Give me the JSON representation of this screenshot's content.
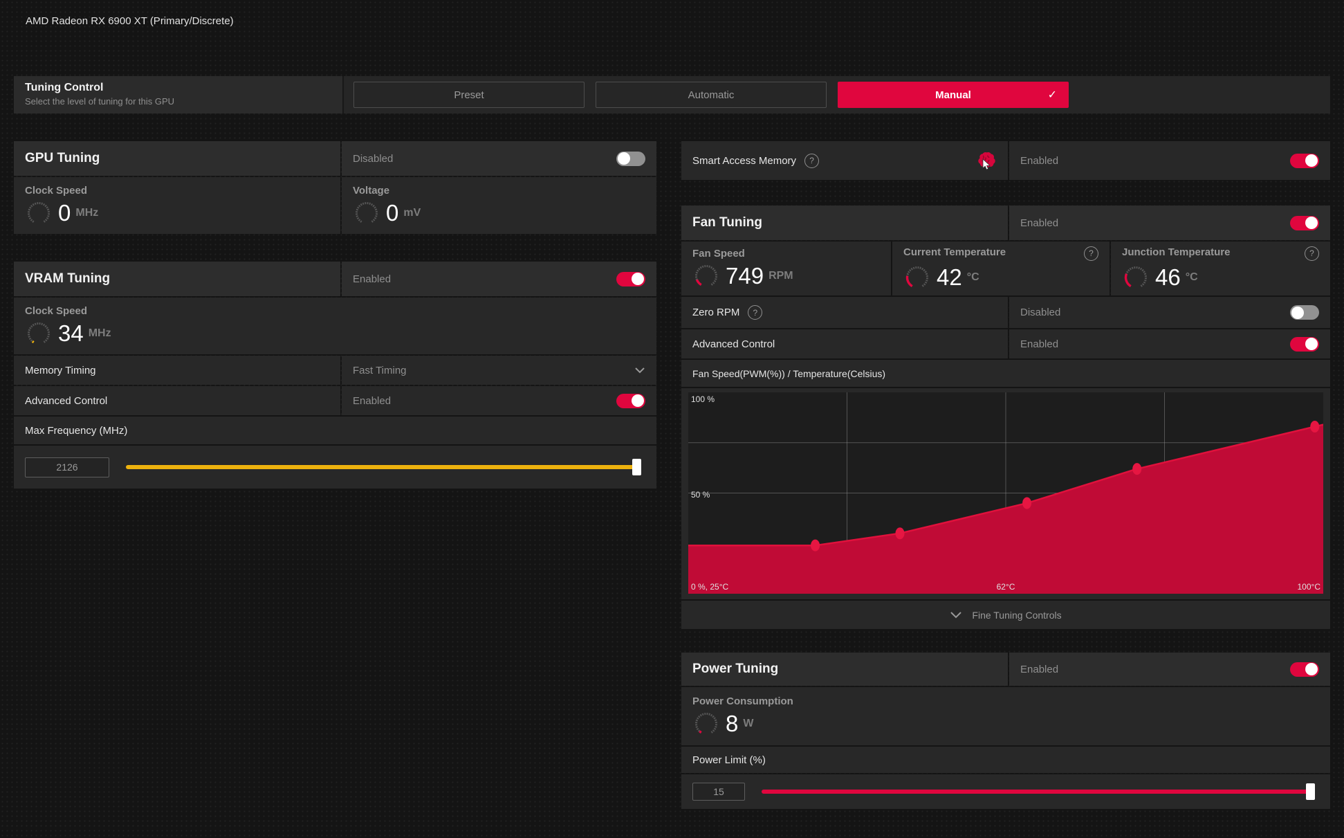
{
  "page": {
    "title": "AMD Radeon RX 6900 XT (Primary/Discrete)"
  },
  "tuning_control": {
    "title": "Tuning Control",
    "subtitle": "Select the level of tuning for this GPU",
    "preset": "Preset",
    "automatic": "Automatic",
    "manual": "Manual"
  },
  "gpu_tuning": {
    "title": "GPU Tuning",
    "state": "Disabled",
    "clock_label": "Clock Speed",
    "clock_value": "0",
    "clock_unit": "MHz",
    "clock_gauge": {
      "pct": 0,
      "color": "#e0063e"
    },
    "voltage_label": "Voltage",
    "voltage_value": "0",
    "voltage_unit": "mV",
    "voltage_gauge": {
      "pct": 0,
      "color": "#e0063e"
    }
  },
  "vram_tuning": {
    "title": "VRAM Tuning",
    "state": "Enabled",
    "clock_label": "Clock Speed",
    "clock_value": "34",
    "clock_unit": "MHz",
    "clock_gauge": {
      "pct": 3,
      "color": "#edb20e"
    },
    "memory_timing_label": "Memory Timing",
    "memory_timing_value": "Fast Timing",
    "advanced_label": "Advanced Control",
    "advanced_state": "Enabled",
    "max_freq_label": "Max Frequency (MHz)",
    "max_freq_value": "2126"
  },
  "smart_access_memory": {
    "label": "Smart Access Memory",
    "state": "Enabled"
  },
  "fan_tuning": {
    "title": "Fan Tuning",
    "state": "Enabled",
    "fan_speed_label": "Fan Speed",
    "fan_speed_value": "749",
    "fan_speed_unit": "RPM",
    "fan_gauge": {
      "pct": 13,
      "color": "#e0063e"
    },
    "current_temp_label": "Current Temperature",
    "current_temp_value": "42",
    "current_temp_unit": "°C",
    "current_gauge": {
      "pct": 23,
      "color": "#e0063e"
    },
    "junction_label": "Junction Temperature",
    "junction_value": "46",
    "junction_unit": "°C",
    "junction_gauge": {
      "pct": 27,
      "color": "#e0063e"
    },
    "zero_rpm_label": "Zero RPM",
    "zero_rpm_state": "Disabled",
    "advanced_label": "Advanced Control",
    "advanced_state": "Enabled",
    "fine_tuning_label": "Fine Tuning Controls"
  },
  "power_tuning": {
    "title": "Power Tuning",
    "state": "Enabled",
    "consumption_label": "Power Consumption",
    "consumption_value": "8",
    "consumption_unit": "W",
    "gauge": {
      "pct": 4,
      "color": "#e0063e"
    },
    "limit_label": "Power Limit (%)",
    "limit_value": "15"
  },
  "chart_data": {
    "type": "area",
    "title": "Fan Speed(PWM(%)) / Temperature(Celsius)",
    "xlabel": "Temperature (Celsius)",
    "ylabel": "Fan Speed PWM (%)",
    "x": [
      25,
      40,
      50,
      65,
      78,
      99
    ],
    "y": [
      24,
      24,
      30,
      45,
      62,
      83
    ],
    "marker_from_index": 1,
    "xlim": [
      25,
      100
    ],
    "ylim": [
      0,
      100
    ],
    "x_ticks": [
      {
        "value": 25,
        "label": "0 %, 25°C"
      },
      {
        "value": 62,
        "label": "62°C"
      },
      {
        "value": 100,
        "label": "100°C"
      }
    ],
    "y_ticks": [
      {
        "value": 100,
        "label": "100 %"
      },
      {
        "value": 50,
        "label": "50 %"
      }
    ],
    "grid": {
      "vertical_fracs": [
        0.25,
        0.5,
        0.75
      ],
      "horizontal_values": [
        50,
        75
      ]
    },
    "colors": {
      "fill": "#c00b36",
      "line": "#e0113c",
      "marker": "#e61642",
      "plot_bg": "#1d1d1d",
      "grid": "#9a9a9a"
    }
  },
  "colors": {
    "accent_red": "#e0063e",
    "slider_yellow": "#edb20e",
    "panel": "#282828",
    "panel_header": "#2d2d2d"
  }
}
